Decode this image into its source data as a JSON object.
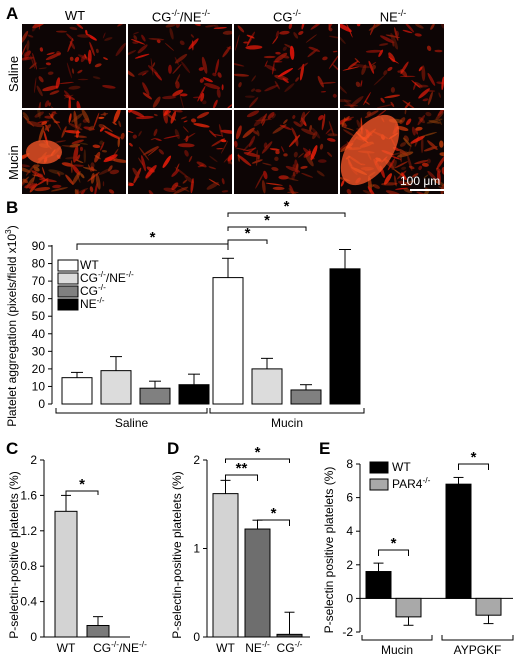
{
  "panelA": {
    "letter": "A",
    "columns": [
      "WT",
      "CG-/-/NE-/-",
      "CG-/-",
      "NE-/-"
    ],
    "rows": [
      "Saline",
      "Mucin"
    ],
    "scalebar": "100 μm",
    "intensity": [
      [
        0.22,
        0.18,
        0.15,
        0.25
      ],
      [
        0.75,
        0.3,
        0.35,
        0.8
      ]
    ]
  },
  "panelB": {
    "letter": "B",
    "ylabel": "Platelet aggregation (pixels/field x10³)",
    "groups": [
      "Saline",
      "Mucin"
    ],
    "legend": [
      "WT",
      "CG-/-/NE-/-",
      "CG-/-",
      "NE-/-"
    ],
    "colors": [
      "#ffffff",
      "#dcdcdc",
      "#808080",
      "#000000"
    ],
    "chart_data": {
      "type": "bar",
      "categories": [
        "Saline",
        "Mucin"
      ],
      "series": [
        {
          "name": "WT",
          "values": [
            15,
            72
          ],
          "errors": [
            3,
            11
          ]
        },
        {
          "name": "CG-/-/NE-/-",
          "values": [
            19,
            20
          ],
          "errors": [
            8,
            6
          ]
        },
        {
          "name": "CG-/-",
          "values": [
            9,
            8
          ],
          "errors": [
            4,
            3
          ]
        },
        {
          "name": "NE-/-",
          "values": [
            11,
            77
          ],
          "errors": [
            6,
            11
          ]
        }
      ],
      "ylim": [
        0,
        90
      ],
      "yticks": [
        0,
        10,
        20,
        30,
        40,
        50,
        60,
        70,
        80,
        90
      ],
      "significance": "*"
    }
  },
  "panelC": {
    "letter": "C",
    "ylabel": "P-selectin-positive platelets (%)",
    "chart_data": {
      "type": "bar",
      "categories": [
        "WT",
        "CG-/-/NE-/-"
      ],
      "values": [
        1.42,
        0.13
      ],
      "errors": [
        0.18,
        0.1
      ],
      "ylim": [
        0,
        2.0
      ],
      "yticks": [
        0,
        0.4,
        0.8,
        1.2,
        1.6,
        2.0
      ],
      "significance": "*"
    }
  },
  "panelD": {
    "letter": "D",
    "ylabel": "P-selectin-positive platelets (%)",
    "chart_data": {
      "type": "bar",
      "categories": [
        "WT",
        "NE-/-",
        "CG-/-"
      ],
      "values": [
        1.62,
        1.22,
        0.03
      ],
      "errors": [
        0.15,
        0.1,
        0.25
      ],
      "ylim": [
        0,
        2
      ],
      "yticks": [
        0,
        1,
        2
      ],
      "significance": [
        "**",
        "*",
        "*"
      ]
    }
  },
  "panelE": {
    "letter": "E",
    "ylabel": "P-selectin positive platelets (%)",
    "legend": [
      "WT",
      "PAR4-/-"
    ],
    "chart_data": {
      "type": "bar",
      "categories": [
        "Mucin",
        "AYPGKF"
      ],
      "series": [
        {
          "name": "WT",
          "values": [
            1.6,
            6.8
          ],
          "errors": [
            0.5,
            0.4
          ]
        },
        {
          "name": "PAR4-/-",
          "values": [
            -1.1,
            -1.0
          ],
          "errors": [
            0.5,
            0.5
          ]
        }
      ],
      "ylim": [
        -2,
        8
      ],
      "yticks": [
        -2,
        0,
        2,
        4,
        6,
        8
      ],
      "significance": "*"
    }
  }
}
